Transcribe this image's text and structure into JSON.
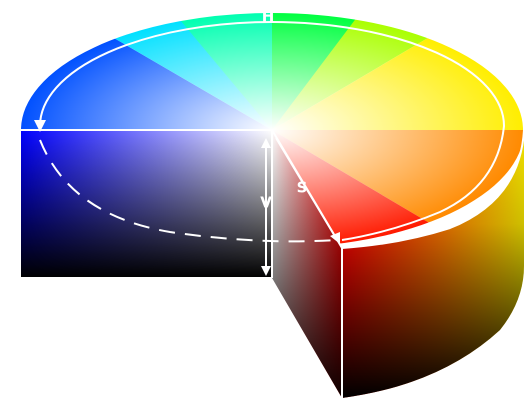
{
  "diagram": {
    "labels": {
      "hue": "H",
      "saturation": "S",
      "value": "V"
    },
    "colors": {
      "background": "#ffffff",
      "guide_lines": "#ffffff",
      "rim_shadow": "#6e6e4a"
    }
  }
}
